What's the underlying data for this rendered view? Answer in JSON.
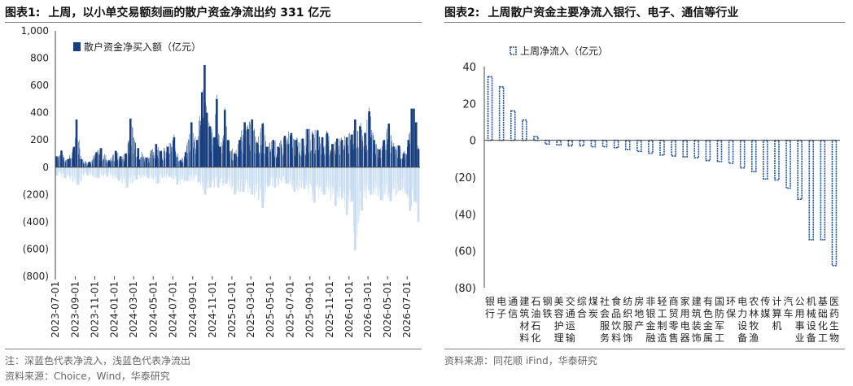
{
  "colors": {
    "inflow": "#173F7F",
    "outflow": "#C9DDF2",
    "bar2_stroke": "#1D4E9A",
    "rule": "#7F7F7F"
  },
  "chart1": {
    "title_num": "图表1:",
    "title": "上周，以小单交易额刻画的散户资金净流出约 331 亿元",
    "note": "注：深蓝色代表净流入，浅蓝色代表净流出",
    "source": "资料来源：Choice，Wind，华泰研究"
  },
  "chart2": {
    "title_num": "图表2:",
    "title": "上周散户资金主要净流入银行、电子、通信等行业",
    "source": "资料来源：同花顺 iFind，华泰研究"
  },
  "chart_data": [
    {
      "type": "bar",
      "legend": "散户资金净买入额（亿元）",
      "legend_position": "top-left",
      "y_ticks": [
        "1,000",
        "800",
        "600",
        "400",
        "200",
        "0",
        "(200)",
        "(400)",
        "(600)",
        "(800)"
      ],
      "ylim": [
        -800,
        1000
      ],
      "x_tick_labels": [
        "2023-07-01",
        "2023-09-01",
        "2023-11-01",
        "2024-01-01",
        "2024-03-01",
        "2024-05-01",
        "2024-07-01",
        "2024-09-01",
        "2024-11-01",
        "2025-01-01",
        "2025-03-01",
        "2025-05-01",
        "2025-07-01",
        "2025-09-01",
        "2025-11-01",
        "2026-01-01",
        "2026-03-01",
        "2026-05-01",
        "2026-07-01"
      ],
      "frequency": "daily (trading days)",
      "x_start": "2023-07-01",
      "x_end": "2026-08-10",
      "series": [
        {
          "name": "inflow",
          "points": [
            [
              "2023-07-05",
              80
            ],
            [
              "2023-07-20",
              120
            ],
            [
              "2023-08-10",
              60
            ],
            [
              "2023-08-28",
              150
            ],
            [
              "2023-09-05",
              350
            ],
            [
              "2023-09-20",
              60
            ],
            [
              "2023-10-15",
              40
            ],
            [
              "2023-11-06",
              110
            ],
            [
              "2023-11-20",
              140
            ],
            [
              "2023-12-15",
              50
            ],
            [
              "2024-01-05",
              120
            ],
            [
              "2024-01-20",
              80
            ],
            [
              "2024-02-05",
              100
            ],
            [
              "2024-02-20",
              355
            ],
            [
              "2024-03-15",
              140
            ],
            [
              "2024-04-10",
              70
            ],
            [
              "2024-05-10",
              170
            ],
            [
              "2024-05-25",
              120
            ],
            [
              "2024-06-15",
              150
            ],
            [
              "2024-07-05",
              220
            ],
            [
              "2024-07-25",
              50
            ],
            [
              "2024-08-10",
              110
            ],
            [
              "2024-08-28",
              330
            ],
            [
              "2024-09-15",
              200
            ],
            [
              "2024-09-30",
              550
            ],
            [
              "2024-10-08",
              750
            ],
            [
              "2024-10-15",
              400
            ],
            [
              "2024-10-25",
              300
            ],
            [
              "2024-11-07",
              220
            ],
            [
              "2024-11-15",
              500
            ],
            [
              "2024-11-25",
              150
            ],
            [
              "2024-12-10",
              420
            ],
            [
              "2024-12-20",
              200
            ],
            [
              "2025-01-10",
              100
            ],
            [
              "2025-01-25",
              200
            ],
            [
              "2025-02-10",
              330
            ],
            [
              "2025-02-20",
              280
            ],
            [
              "2025-03-05",
              350
            ],
            [
              "2025-03-20",
              180
            ],
            [
              "2025-04-07",
              320
            ],
            [
              "2025-04-20",
              150
            ],
            [
              "2025-05-10",
              200
            ],
            [
              "2025-05-25",
              150
            ],
            [
              "2025-06-15",
              230
            ],
            [
              "2025-07-05",
              250
            ],
            [
              "2025-07-20",
              200
            ],
            [
              "2025-08-10",
              210
            ],
            [
              "2025-08-25",
              280
            ],
            [
              "2025-09-10",
              240
            ],
            [
              "2025-09-25",
              270
            ],
            [
              "2025-10-10",
              220
            ],
            [
              "2025-10-25",
              250
            ],
            [
              "2025-11-10",
              170
            ],
            [
              "2025-11-25",
              210
            ],
            [
              "2025-12-10",
              200
            ],
            [
              "2025-12-25",
              220
            ],
            [
              "2026-01-10",
              240
            ],
            [
              "2026-01-20",
              350
            ],
            [
              "2026-02-05",
              300
            ],
            [
              "2026-02-20",
              250
            ],
            [
              "2026-03-05",
              410
            ],
            [
              "2026-03-20",
              200
            ],
            [
              "2026-04-05",
              130
            ],
            [
              "2026-04-20",
              200
            ],
            [
              "2026-05-05",
              320
            ],
            [
              "2026-05-20",
              150
            ],
            [
              "2026-06-05",
              160
            ],
            [
              "2026-06-20",
              100
            ],
            [
              "2026-07-05",
              200
            ],
            [
              "2026-07-15",
              430
            ],
            [
              "2026-07-22",
              430
            ],
            [
              "2026-07-29",
              330
            ],
            [
              "2026-08-05",
              130
            ]
          ]
        },
        {
          "name": "outflow",
          "points": [
            [
              "2023-07-05",
              -60
            ],
            [
              "2023-08-01",
              -80
            ],
            [
              "2023-09-10",
              -130
            ],
            [
              "2023-10-10",
              -60
            ],
            [
              "2023-11-10",
              -80
            ],
            [
              "2023-12-10",
              -70
            ],
            [
              "2024-01-15",
              -100
            ],
            [
              "2024-02-10",
              -150
            ],
            [
              "2024-03-10",
              -90
            ],
            [
              "2024-04-15",
              -80
            ],
            [
              "2024-05-15",
              -120
            ],
            [
              "2024-06-20",
              -70
            ],
            [
              "2024-07-15",
              -130
            ],
            [
              "2024-08-15",
              -100
            ],
            [
              "2024-09-20",
              -110
            ],
            [
              "2024-10-10",
              -200
            ],
            [
              "2024-10-25",
              -150
            ],
            [
              "2024-11-20",
              -150
            ],
            [
              "2024-12-15",
              -120
            ],
            [
              "2025-01-10",
              -200
            ],
            [
              "2025-02-05",
              -180
            ],
            [
              "2025-03-05",
              -200
            ],
            [
              "2025-04-07",
              -300
            ],
            [
              "2025-04-25",
              -140
            ],
            [
              "2025-05-15",
              -150
            ],
            [
              "2025-06-20",
              -120
            ],
            [
              "2025-07-15",
              -180
            ],
            [
              "2025-08-15",
              -160
            ],
            [
              "2025-09-15",
              -260
            ],
            [
              "2025-10-15",
              -200
            ],
            [
              "2025-11-20",
              -280
            ],
            [
              "2025-12-10",
              -230
            ],
            [
              "2025-12-25",
              -350
            ],
            [
              "2026-01-10",
              -250
            ],
            [
              "2026-01-20",
              -610
            ],
            [
              "2026-02-10",
              -320
            ],
            [
              "2026-03-10",
              -200
            ],
            [
              "2026-04-10",
              -240
            ],
            [
              "2026-05-10",
              -250
            ],
            [
              "2026-06-10",
              -170
            ],
            [
              "2026-07-01",
              -200
            ],
            [
              "2026-07-10",
              -320
            ],
            [
              "2026-07-25",
              -250
            ],
            [
              "2026-08-05",
              -400
            ]
          ]
        }
      ]
    },
    {
      "type": "bar",
      "legend": "上周净流入（亿元）",
      "legend_position": "top-left",
      "ylim": [
        -80,
        40
      ],
      "y_ticks": [
        "40",
        "20",
        "0",
        "(20)",
        "(40)",
        "(60)",
        "(80)"
      ],
      "categories": [
        [
          "银",
          "行"
        ],
        [
          "电",
          "子"
        ],
        [
          "通",
          "信"
        ],
        [
          "建",
          "筑",
          "材",
          "料"
        ],
        [
          "石",
          "油",
          "石",
          "化"
        ],
        [
          "钢",
          "铁"
        ],
        [
          "美",
          "容",
          "护",
          "理"
        ],
        [
          "交",
          "通",
          "运",
          "输"
        ],
        [
          "综",
          "合"
        ],
        [
          "煤",
          "炭"
        ],
        [
          "社",
          "会",
          "服",
          "务"
        ],
        [
          "食",
          "品",
          "饮",
          "料"
        ],
        [
          "纺",
          "织",
          "服",
          "饰"
        ],
        [
          "房",
          "地",
          "产"
        ],
        [
          "非",
          "银",
          "金",
          "融"
        ],
        [
          "轻",
          "工",
          "制",
          "造"
        ],
        [
          "商",
          "贸",
          "零",
          "售"
        ],
        [
          "家",
          "用",
          "电",
          "器"
        ],
        [
          "建",
          "筑",
          "装",
          "饰"
        ],
        [
          "有",
          "色",
          "金",
          "属"
        ],
        [
          "国",
          "防",
          "军",
          "工"
        ],
        [
          "环",
          "保"
        ],
        [
          "电",
          "力",
          "设",
          "备"
        ],
        [
          "农",
          "林",
          "牧",
          "渔"
        ],
        [
          "传",
          "媒"
        ],
        [
          "计",
          "算",
          "机"
        ],
        [
          "汽",
          "车"
        ],
        [
          "公",
          "用",
          "事",
          "业"
        ],
        [
          "机",
          "械",
          "设",
          "备"
        ],
        [
          "基",
          "础",
          "化",
          "工"
        ],
        [
          "医",
          "药",
          "生",
          "物"
        ]
      ],
      "values": [
        34.5,
        29,
        16,
        11,
        2,
        -2,
        -2.5,
        -3,
        -3,
        -3.5,
        -3.5,
        -4,
        -5,
        -6,
        -7,
        -8,
        -8.5,
        -9,
        -9.5,
        -11,
        -11.5,
        -12.5,
        -15,
        -17,
        -21,
        -21.5,
        -26,
        -32,
        -54,
        -54,
        -68
      ]
    }
  ]
}
